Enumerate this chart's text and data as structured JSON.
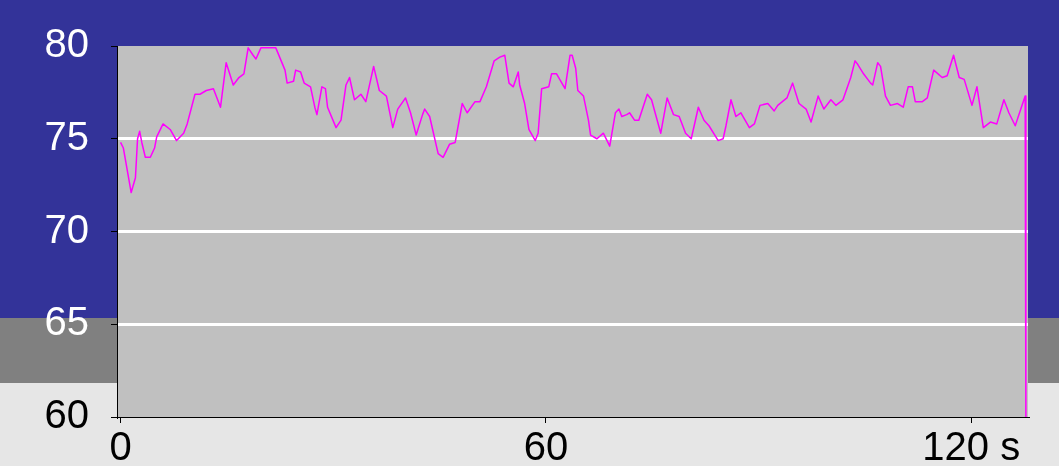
{
  "chart_data": {
    "type": "line",
    "x": [
      0,
      0.4,
      1.5,
      2.1,
      2.4,
      2.7,
      3.0,
      3.5,
      4.2,
      4.8,
      5.1,
      6.0,
      7.0,
      7.9,
      8.9,
      9.4,
      10.5,
      11.2,
      12.1,
      13.1,
      14.1,
      14.9,
      15.9,
      16.7,
      17.4,
      18.0,
      18.7,
      19.1,
      19.8,
      20.9,
      21.9,
      23.2,
      23.5,
      24.4,
      24.7,
      25.4,
      25.9,
      26.8,
      27.4,
      27.7,
      28.4,
      28.9,
      29.2,
      30.4,
      31.1,
      31.8,
      32.3,
      33.0,
      33.9,
      34.6,
      35.7,
      36.5,
      37.5,
      38.4,
      39.1,
      40.2,
      40.9,
      41.7,
      42.6,
      42.9,
      43.6,
      44.8,
      45.5,
      46.4,
      47.2,
      48.2,
      48.9,
      50.0,
      50.7,
      51.6,
      52.7,
      53.5,
      54.2,
      54.8,
      55.4,
      56.1,
      56.3,
      57.0,
      57.6,
      58.5,
      58.9,
      59.4,
      60.4,
      60.8,
      61.5,
      62.7,
      63.4,
      63.7,
      64.2,
      64.5,
      65.3,
      66.0,
      66.3,
      67.2,
      68.1,
      69.0,
      69.8,
      70.3,
      70.7,
      71.4,
      71.8,
      72.5,
      73.1,
      74.3,
      74.9,
      76.2,
      77.1,
      78.0,
      78.8,
      79.7,
      80.5,
      81.5,
      82.3,
      83.0,
      84.3,
      85.0,
      85.4,
      86.1,
      86.8,
      87.5,
      88.7,
      89.4,
      90.2,
      91.3,
      92.2,
      92.7,
      94.0,
      94.8,
      95.7,
      96.7,
      97.4,
      98.4,
      99.2,
      100.2,
      100.9,
      101.9,
      103.0,
      103.6,
      104.0,
      104.8,
      105.8,
      106.1,
      106.8,
      107.2,
      107.9,
      108.6,
      109.6,
      110.4,
      111.1,
      111.7,
      112.1,
      113.1,
      113.8,
      114.7,
      115.9,
      116.6,
      117.5,
      118.3,
      119.0,
      120.1,
      120.8,
      121.7,
      122.7,
      123.6,
      124.6,
      125.3,
      126.2,
      127.6,
      127.7
    ],
    "values": [
      74.8,
      74.5,
      72.1,
      72.9,
      75.0,
      75.4,
      74.8,
      74.0,
      74.0,
      74.5,
      75.1,
      75.8,
      75.5,
      74.9,
      75.3,
      75.8,
      77.4,
      77.4,
      77.6,
      77.7,
      76.7,
      79.1,
      77.9,
      78.3,
      78.5,
      79.9,
      79.5,
      79.3,
      79.9,
      79.9,
      79.9,
      78.7,
      78.0,
      78.1,
      78.7,
      78.6,
      78.0,
      77.8,
      76.7,
      76.3,
      77.8,
      77.7,
      76.7,
      75.6,
      76.0,
      77.9,
      78.3,
      77.1,
      77.4,
      77.0,
      78.9,
      77.6,
      77.3,
      75.6,
      76.6,
      77.2,
      76.4,
      75.2,
      76.3,
      76.6,
      76.2,
      74.2,
      74.0,
      74.7,
      74.8,
      76.9,
      76.4,
      77.0,
      77.0,
      77.8,
      79.2,
      79.4,
      79.5,
      78.0,
      77.8,
      78.6,
      77.9,
      76.9,
      75.5,
      74.9,
      75.3,
      77.7,
      77.8,
      78.5,
      78.5,
      77.7,
      79.5,
      79.5,
      78.8,
      77.6,
      77.3,
      76.0,
      75.2,
      75.0,
      75.3,
      74.6,
      76.4,
      76.6,
      76.2,
      76.3,
      76.4,
      76.0,
      76.0,
      77.4,
      77.1,
      75.3,
      77.2,
      76.3,
      76.2,
      75.3,
      75.0,
      76.7,
      76.0,
      75.7,
      74.9,
      75.0,
      75.7,
      77.1,
      76.2,
      76.4,
      75.6,
      75.8,
      76.8,
      76.9,
      76.5,
      76.8,
      77.2,
      78.0,
      76.9,
      76.6,
      75.9,
      77.3,
      76.6,
      77.1,
      76.8,
      77.1,
      78.3,
      79.2,
      79.0,
      78.5,
      78.0,
      77.9,
      79.1,
      78.9,
      77.3,
      76.8,
      76.9,
      76.7,
      77.8,
      77.8,
      77.0,
      77.0,
      77.2,
      78.7,
      78.3,
      78.4,
      79.5,
      78.3,
      78.2,
      76.8,
      77.8,
      75.6,
      75.9,
      75.8,
      77.1,
      76.4,
      75.7,
      77.3,
      60
    ],
    "color": "#ff00ff",
    "xlim": [
      -0.5,
      128
    ],
    "xticks": [
      0,
      60,
      {
        "value": 120,
        "label": "120 s"
      }
    ],
    "ylim": [
      60,
      80
    ],
    "yticks": [
      60,
      65,
      70,
      75,
      80
    ],
    "grid": "y",
    "marker": "none",
    "line_style": "solid"
  }
}
